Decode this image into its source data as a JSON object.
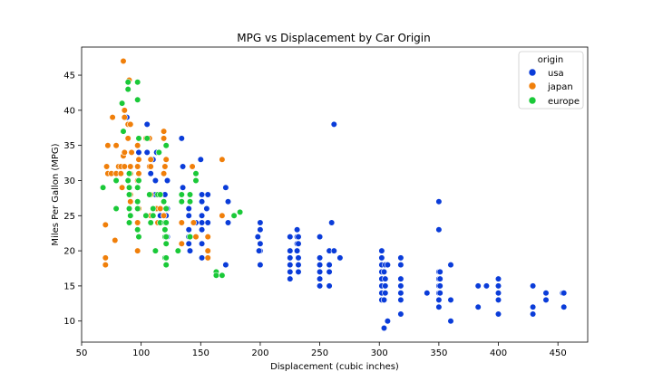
{
  "chart_data": {
    "type": "scatter",
    "title": "MPG vs Displacement by Car Origin",
    "xlabel": "Displacement (cubic inches)",
    "ylabel": "Miles Per Gallon (MPG)",
    "xlim": [
      50,
      475
    ],
    "ylim": [
      7,
      49
    ],
    "xticks": [
      50,
      100,
      150,
      200,
      250,
      300,
      350,
      400,
      450
    ],
    "yticks": [
      10,
      15,
      20,
      25,
      30,
      35,
      40,
      45
    ],
    "grid": false,
    "legend": {
      "title": "origin",
      "placement": "top-right"
    },
    "series": [
      {
        "name": "usa",
        "color": "#0a3cd9",
        "points": [
          [
            88,
            39
          ],
          [
            97,
            35
          ],
          [
            98,
            36
          ],
          [
            98,
            34
          ],
          [
            98,
            26
          ],
          [
            97,
            24
          ],
          [
            105,
            34
          ],
          [
            105,
            38
          ],
          [
            107,
            36
          ],
          [
            108,
            31
          ],
          [
            110,
            33
          ],
          [
            112,
            30
          ],
          [
            112,
            28
          ],
          [
            113,
            34
          ],
          [
            114,
            26
          ],
          [
            116,
            25
          ],
          [
            119,
            27
          ],
          [
            120,
            28
          ],
          [
            121,
            25
          ],
          [
            121,
            24
          ],
          [
            122,
            30
          ],
          [
            122,
            26
          ],
          [
            122,
            22
          ],
          [
            134,
            36
          ],
          [
            135,
            32
          ],
          [
            135,
            29
          ],
          [
            140,
            26
          ],
          [
            140,
            25
          ],
          [
            140,
            23
          ],
          [
            140,
            22
          ],
          [
            140,
            21
          ],
          [
            141,
            20
          ],
          [
            146,
            22
          ],
          [
            146,
            24
          ],
          [
            150,
            33
          ],
          [
            151,
            28
          ],
          [
            151,
            27
          ],
          [
            151,
            25
          ],
          [
            151,
            24
          ],
          [
            151,
            23
          ],
          [
            151,
            21
          ],
          [
            151,
            19
          ],
          [
            155,
            26
          ],
          [
            156,
            24
          ],
          [
            156,
            28
          ],
          [
            171,
            29
          ],
          [
            173,
            27
          ],
          [
            173,
            24
          ],
          [
            171,
            18
          ],
          [
            200,
            24
          ],
          [
            200,
            23
          ],
          [
            200,
            21
          ],
          [
            200,
            20
          ],
          [
            200,
            18
          ],
          [
            199,
            20
          ],
          [
            198,
            22
          ],
          [
            225,
            22
          ],
          [
            225,
            20
          ],
          [
            225,
            19
          ],
          [
            225,
            18
          ],
          [
            225,
            17
          ],
          [
            225,
            16
          ],
          [
            231,
            22
          ],
          [
            231,
            21
          ],
          [
            231,
            20
          ],
          [
            232,
            22
          ],
          [
            232,
            21
          ],
          [
            232,
            19
          ],
          [
            232,
            18
          ],
          [
            232,
            17
          ],
          [
            231,
            23
          ],
          [
            250,
            22
          ],
          [
            250,
            19
          ],
          [
            250,
            18
          ],
          [
            250,
            17
          ],
          [
            250,
            16
          ],
          [
            250,
            15
          ],
          [
            258,
            20
          ],
          [
            258,
            18
          ],
          [
            258,
            17
          ],
          [
            258,
            15
          ],
          [
            260,
            24
          ],
          [
            262,
            38
          ],
          [
            262,
            20
          ],
          [
            267,
            19
          ],
          [
            302,
            20
          ],
          [
            302,
            19
          ],
          [
            302,
            18
          ],
          [
            302,
            17
          ],
          [
            302,
            16
          ],
          [
            302,
            15
          ],
          [
            302,
            14
          ],
          [
            302,
            13
          ],
          [
            304,
            9
          ],
          [
            304,
            13
          ],
          [
            304,
            17
          ],
          [
            305,
            18
          ],
          [
            305,
            16
          ],
          [
            305,
            15
          ],
          [
            305,
            14
          ],
          [
            307,
            10
          ],
          [
            307,
            18
          ],
          [
            318,
            19
          ],
          [
            318,
            18
          ],
          [
            318,
            16
          ],
          [
            318,
            15
          ],
          [
            318,
            14
          ],
          [
            318,
            13
          ],
          [
            318,
            11
          ],
          [
            340,
            14
          ],
          [
            350,
            27
          ],
          [
            350,
            23
          ],
          [
            350,
            17
          ],
          [
            350,
            16
          ],
          [
            350,
            15
          ],
          [
            350,
            14
          ],
          [
            350,
            13
          ],
          [
            350,
            12
          ],
          [
            351,
            17
          ],
          [
            351,
            15
          ],
          [
            351,
            16
          ],
          [
            351,
            14
          ],
          [
            360,
            18
          ],
          [
            360,
            13
          ],
          [
            360,
            10
          ],
          [
            383,
            12
          ],
          [
            383,
            15
          ],
          [
            390,
            15
          ],
          [
            400,
            16
          ],
          [
            400,
            15
          ],
          [
            400,
            14
          ],
          [
            400,
            13
          ],
          [
            400,
            11
          ],
          [
            429,
            15
          ],
          [
            429,
            12
          ],
          [
            429,
            11
          ],
          [
            440,
            14
          ],
          [
            440,
            13
          ],
          [
            454,
            14
          ],
          [
            455,
            14
          ],
          [
            455,
            12
          ]
        ]
      },
      {
        "name": "japan",
        "color": "#f07f0a",
        "points": [
          [
            70,
            18
          ],
          [
            70,
            19
          ],
          [
            70,
            23.7
          ],
          [
            71,
            32
          ],
          [
            72,
            35
          ],
          [
            72,
            31
          ],
          [
            75,
            31
          ],
          [
            76,
            39
          ],
          [
            78,
            21.5
          ],
          [
            79,
            35
          ],
          [
            79,
            31
          ],
          [
            81,
            32
          ],
          [
            83,
            32
          ],
          [
            83,
            31
          ],
          [
            84,
            29
          ],
          [
            85,
            33.5
          ],
          [
            85,
            47
          ],
          [
            86,
            40
          ],
          [
            86,
            39
          ],
          [
            86,
            34
          ],
          [
            86,
            32
          ],
          [
            89,
            44
          ],
          [
            89,
            38
          ],
          [
            89,
            36
          ],
          [
            90,
            44.3
          ],
          [
            91,
            38
          ],
          [
            91,
            32
          ],
          [
            91,
            31
          ],
          [
            91,
            28
          ],
          [
            91,
            27
          ],
          [
            92,
            34
          ],
          [
            97,
            35
          ],
          [
            97,
            32
          ],
          [
            97,
            30
          ],
          [
            97,
            29
          ],
          [
            97,
            27
          ],
          [
            97,
            26
          ],
          [
            97,
            24
          ],
          [
            97,
            20
          ],
          [
            98,
            33
          ],
          [
            98,
            31
          ],
          [
            98,
            26
          ],
          [
            104,
            36
          ],
          [
            107,
            36
          ],
          [
            107,
            32
          ],
          [
            108,
            33
          ],
          [
            108,
            28
          ],
          [
            108,
            32
          ],
          [
            108,
            25
          ],
          [
            113,
            26
          ],
          [
            114,
            24
          ],
          [
            116,
            26
          ],
          [
            119,
            36
          ],
          [
            119,
            37
          ],
          [
            119,
            31
          ],
          [
            119,
            27
          ],
          [
            119,
            25
          ],
          [
            120,
            32
          ],
          [
            120,
            24
          ],
          [
            121,
            33
          ],
          [
            121,
            22
          ],
          [
            134,
            27
          ],
          [
            134,
            21
          ],
          [
            134,
            24
          ],
          [
            143,
            32
          ],
          [
            144,
            24
          ],
          [
            146,
            22
          ],
          [
            156,
            19
          ],
          [
            156,
            20
          ],
          [
            156,
            22
          ],
          [
            168,
            25
          ],
          [
            168,
            33
          ]
        ]
      },
      {
        "name": "europe",
        "color": "#1ac938",
        "points": [
          [
            68,
            29
          ],
          [
            79,
            26
          ],
          [
            79,
            30
          ],
          [
            84,
            41
          ],
          [
            85,
            37
          ],
          [
            89,
            44
          ],
          [
            89,
            43
          ],
          [
            89,
            30
          ],
          [
            90,
            31
          ],
          [
            90,
            29
          ],
          [
            90,
            28
          ],
          [
            90,
            26
          ],
          [
            90,
            24
          ],
          [
            91,
            25
          ],
          [
            97,
            44
          ],
          [
            97,
            41.5
          ],
          [
            97,
            29
          ],
          [
            97,
            27
          ],
          [
            97,
            26
          ],
          [
            97,
            23
          ],
          [
            98,
            22
          ],
          [
            98,
            30
          ],
          [
            98,
            36
          ],
          [
            104,
            25
          ],
          [
            105,
            36
          ],
          [
            107,
            28
          ],
          [
            108,
            24
          ],
          [
            110,
            26
          ],
          [
            110,
            25
          ],
          [
            112,
            20
          ],
          [
            114,
            28
          ],
          [
            115,
            34
          ],
          [
            116,
            28
          ],
          [
            116,
            24
          ],
          [
            119,
            27
          ],
          [
            120,
            23
          ],
          [
            120,
            24
          ],
          [
            120,
            22
          ],
          [
            120,
            19
          ],
          [
            121,
            35
          ],
          [
            121,
            26
          ],
          [
            121,
            24
          ],
          [
            121,
            22
          ],
          [
            121,
            21
          ],
          [
            121,
            19
          ],
          [
            121,
            18
          ],
          [
            131,
            20
          ],
          [
            134,
            28
          ],
          [
            134,
            27
          ],
          [
            141,
            28
          ],
          [
            141,
            27
          ],
          [
            141,
            22
          ],
          [
            146,
            30
          ],
          [
            146,
            31
          ],
          [
            163,
            17
          ],
          [
            163,
            16.5
          ],
          [
            168,
            16.5
          ],
          [
            178,
            25
          ],
          [
            183,
            25.5
          ]
        ]
      }
    ]
  }
}
